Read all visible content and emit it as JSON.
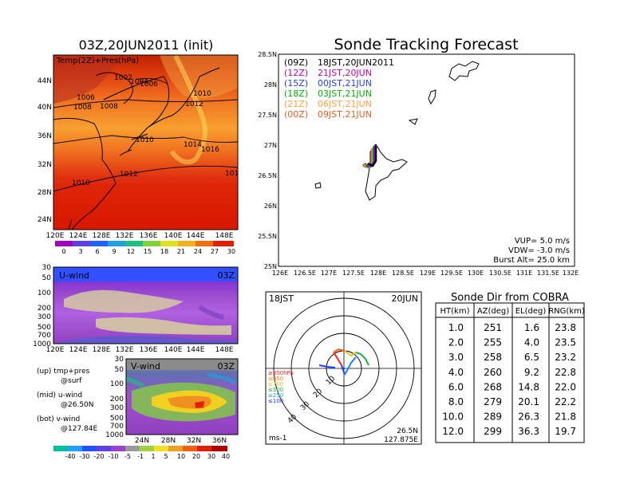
{
  "colors": {
    "c00z": "#000000",
    "c12z": "#c000c0",
    "c15z": "#2040ff",
    "c18z": "#00b000",
    "c21z": "#ffa040",
    "c00z2": "#e06020",
    "shade_lightblue": "#60a0ff",
    "shade_blue": "#2050ff"
  },
  "map_panel": {
    "title": "03Z,20JUN2011 (init)",
    "label": "Temp(2Z)+Pres(hPa)",
    "lat_ticks": [
      "44N",
      "40N",
      "36N",
      "32N",
      "28N",
      "24N"
    ],
    "lon_ticks": [
      "120E",
      "124E",
      "128E",
      "132E",
      "136E",
      "140E",
      "144E",
      "148E"
    ],
    "isobar_labels": [
      "1002",
      "1004",
      "1006",
      "1006",
      "1008",
      "1008",
      "1010",
      "1012",
      "1010",
      "1014",
      "1016",
      "1012",
      "1010",
      "101"
    ],
    "colorbar_ticks": [
      "0",
      "3",
      "6",
      "9",
      "12",
      "15",
      "18",
      "21",
      "24",
      "27",
      "30"
    ]
  },
  "u_panel": {
    "label": "U-wind",
    "time": "03Z",
    "p_ticks": [
      "30",
      "50",
      "100",
      "200",
      "300",
      "500",
      "700",
      "1000"
    ],
    "lon_ticks": [
      "120E",
      "124E",
      "128E",
      "132E",
      "136E",
      "140E",
      "144E",
      "148E"
    ]
  },
  "v_panel": {
    "label": "V-wind",
    "time": "03Z",
    "p_ticks": [
      "30",
      "50",
      "100",
      "200",
      "300",
      "500",
      "700",
      "1000"
    ],
    "lat_ticks": [
      "24N",
      "28N",
      "32N",
      "36N"
    ],
    "colorbar_ticks": [
      "-40",
      "-30",
      "-20",
      "-10",
      "-5",
      "-1",
      "1",
      "5",
      "10",
      "20",
      "30",
      "40"
    ]
  },
  "legend_text": {
    "top": "(up) tmp+pres",
    "top_sub": "@surf",
    "mid": "(mid) u-wind",
    "mid_sub": "@26.50N",
    "bot": "(bot) v-wind",
    "bot_sub": "@127.84E"
  },
  "tracking": {
    "title": "Sonde Tracking Forecast",
    "lat_ticks": [
      "28.5N",
      "28N",
      "27.5N",
      "27N",
      "26.5N",
      "26N",
      "25.5N",
      "25N"
    ],
    "lon_ticks": [
      "126E",
      "126.5E",
      "127E",
      "127.5E",
      "128E",
      "128.5E",
      "129E",
      "129.5E",
      "130E",
      "130.5E",
      "131E",
      "131.5E",
      "132E"
    ],
    "legend": [
      {
        "code": "(09Z)",
        "text": "18JST,20JUN2011"
      },
      {
        "code": "(12Z)",
        "text": "21JST,20JUN"
      },
      {
        "code": "(15Z)",
        "text": "00JST,21JUN"
      },
      {
        "code": "(18Z)",
        "text": "03JST,21JUN"
      },
      {
        "code": "(21Z)",
        "text": "06JST,21JUN"
      },
      {
        "code": "(00Z)",
        "text": "09JST,21JUN"
      }
    ],
    "vup": "VUP= 5.0 m/s",
    "vdw": "VDW= -3.0 m/s",
    "burst": "Burst Alt= 25.0 km"
  },
  "hodograph": {
    "time": "18JST",
    "date": "20JUN",
    "levels": [
      "≥850hPa",
      "≤850",
      "≤700",
      "≤500",
      "≤250",
      "≤100"
    ],
    "ring_labels": [
      "10",
      "20",
      "30",
      "40"
    ],
    "units": "ms-1",
    "lat": "26.5N",
    "lon": "127.875E"
  },
  "chart_data": {
    "type": "table",
    "title": "Sonde Dir from COBRA",
    "columns": [
      "HT(km)",
      "AZ(deg)",
      "EL(deg)",
      "RNG(km)"
    ],
    "rows": [
      [
        "1.0",
        "251",
        "1.6",
        "23.8"
      ],
      [
        "2.0",
        "255",
        "4.0",
        "23.5"
      ],
      [
        "3.0",
        "258",
        "6.5",
        "23.2"
      ],
      [
        "4.0",
        "260",
        "9.2",
        "22.8"
      ],
      [
        "6.0",
        "268",
        "14.8",
        "22.0"
      ],
      [
        "8.0",
        "279",
        "20.1",
        "22.2"
      ],
      [
        "10.0",
        "289",
        "26.3",
        "21.8"
      ],
      [
        "12.0",
        "299",
        "36.3",
        "19.7"
      ]
    ]
  }
}
